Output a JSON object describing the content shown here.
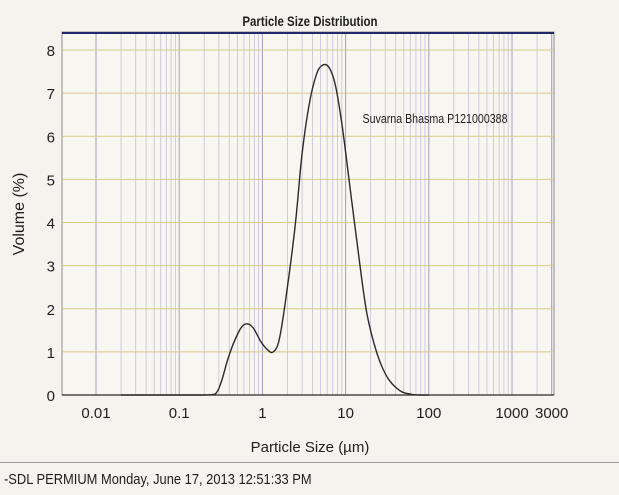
{
  "footer": {
    "text": "-SDL PERMIUM Monday, June 17, 2013 12:51:33 PM"
  },
  "colors": {
    "background": "#f4f3ee",
    "grid": "#c9bfd8",
    "axis": "#2a2a2a",
    "curve": "#2a2a2a",
    "accent_line": "#d8c988"
  },
  "chart_data": {
    "type": "line",
    "title": "Particle Size Distribution",
    "xlabel": "Particle Size (µm)",
    "ylabel": "Volume (%)",
    "xscale": "log",
    "xlim": [
      0.01,
      3000
    ],
    "ylim": [
      0,
      8.5
    ],
    "xticks": [
      {
        "value": 0.01,
        "label": "0.01"
      },
      {
        "value": 0.1,
        "label": "0.1"
      },
      {
        "value": 1,
        "label": "1"
      },
      {
        "value": 10,
        "label": "10"
      },
      {
        "value": 100,
        "label": "100"
      },
      {
        "value": 1000,
        "label": "1000"
      },
      {
        "value": 3000,
        "label": "3000"
      }
    ],
    "yticks": [
      0,
      1,
      2,
      3,
      4,
      5,
      6,
      7,
      8
    ],
    "grid": true,
    "annotation": {
      "text": "Suvarna Bhasma P121000388",
      "anchor": "upper-right"
    },
    "series": [
      {
        "name": "Suvarna Bhasma P121000388",
        "points": [
          [
            0.02,
            0
          ],
          [
            0.1,
            0
          ],
          [
            0.2,
            0
          ],
          [
            0.27,
            0.02
          ],
          [
            0.32,
            0.3
          ],
          [
            0.38,
            0.8
          ],
          [
            0.45,
            1.2
          ],
          [
            0.55,
            1.55
          ],
          [
            0.65,
            1.65
          ],
          [
            0.78,
            1.55
          ],
          [
            0.95,
            1.25
          ],
          [
            1.15,
            1.05
          ],
          [
            1.35,
            1.0
          ],
          [
            1.6,
            1.3
          ],
          [
            2.0,
            2.5
          ],
          [
            2.5,
            4.0
          ],
          [
            3.0,
            5.6
          ],
          [
            3.7,
            6.8
          ],
          [
            4.5,
            7.45
          ],
          [
            5.3,
            7.65
          ],
          [
            6.3,
            7.6
          ],
          [
            7.5,
            7.2
          ],
          [
            9.0,
            6.3
          ],
          [
            11,
            5.0
          ],
          [
            14,
            3.4
          ],
          [
            18,
            1.9
          ],
          [
            24,
            0.95
          ],
          [
            32,
            0.4
          ],
          [
            45,
            0.1
          ],
          [
            60,
            0.02
          ],
          [
            75,
            0
          ],
          [
            100,
            0
          ]
        ]
      }
    ]
  }
}
